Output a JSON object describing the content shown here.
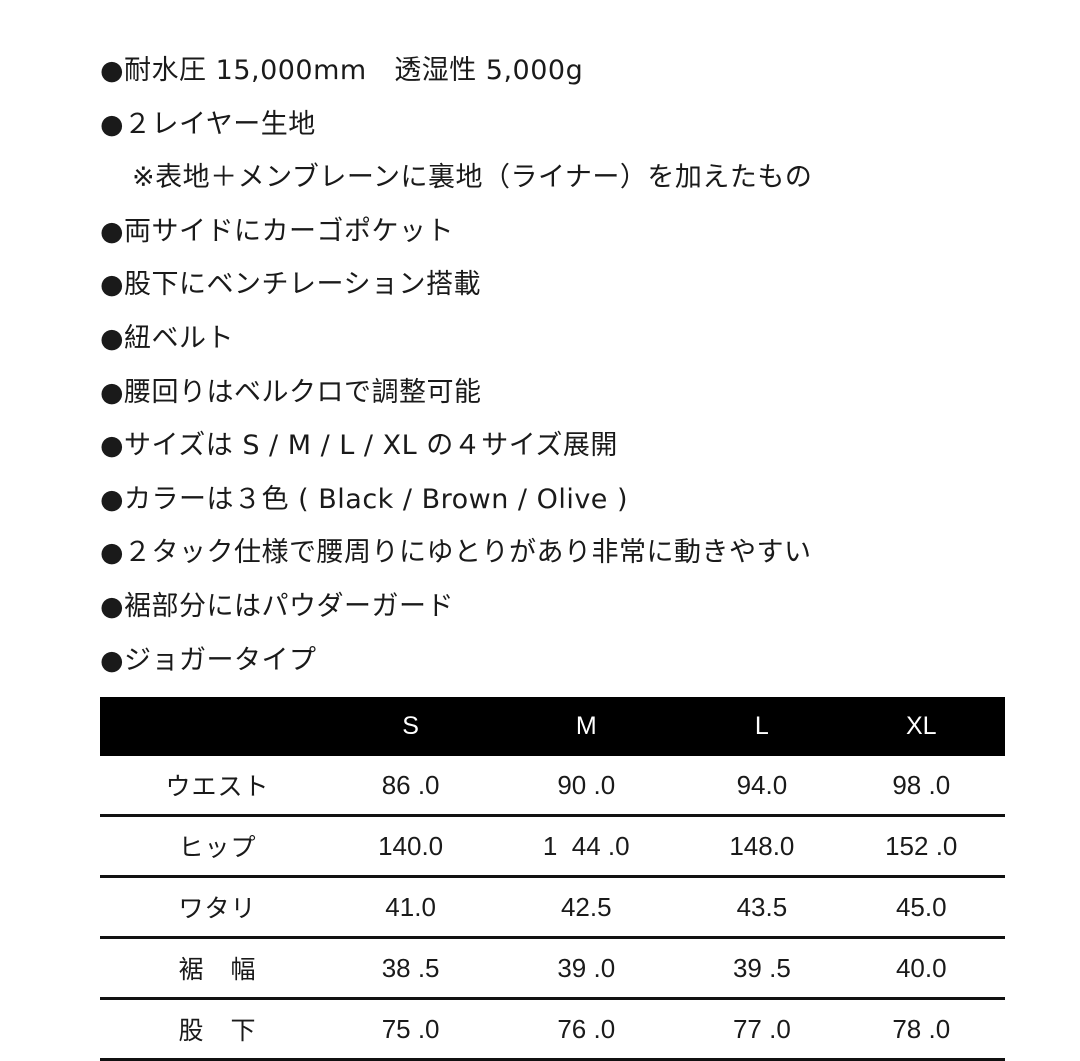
{
  "features": [
    "●耐水圧 15,000mm　透湿性 5,000g",
    "●２レイヤー生地",
    "※表地＋メンブレーンに裏地（ライナー）を加えたもの",
    "●両サイドにカーゴポケット",
    "●股下にベンチレーション搭載",
    "●紐ベルト",
    "●腰回りはベルクロで調整可能",
    "●サイズは S / M / L / XL の４サイズ展開",
    "●カラーは３色 ( Black / Brown / Olive )",
    "●２タック仕様で腰周りにゆとりがあり非常に動きやすい",
    "●裾部分にはパウダーガード",
    "●ジョガータイプ"
  ],
  "size_table": {
    "headers": [
      "",
      "S",
      "M",
      "L",
      "XL"
    ],
    "rows": [
      {
        "label": "ウエスト",
        "values": [
          "86 .0",
          "90 .0",
          "94.0",
          "98 .0"
        ]
      },
      {
        "label": "ヒップ",
        "values": [
          "140.0",
          "1  44 .0",
          "148.0",
          "152 .0"
        ]
      },
      {
        "label": "ワタリ",
        "values": [
          "41.0",
          "42.5",
          "43.5",
          "45.0"
        ]
      },
      {
        "label": "裾　幅",
        "values": [
          "38 .5",
          "39 .0",
          "39 .5",
          "40.0"
        ]
      },
      {
        "label": "股　下",
        "values": [
          "75 .0",
          "76 .0",
          "77 .0",
          "78 .0"
        ]
      }
    ]
  }
}
